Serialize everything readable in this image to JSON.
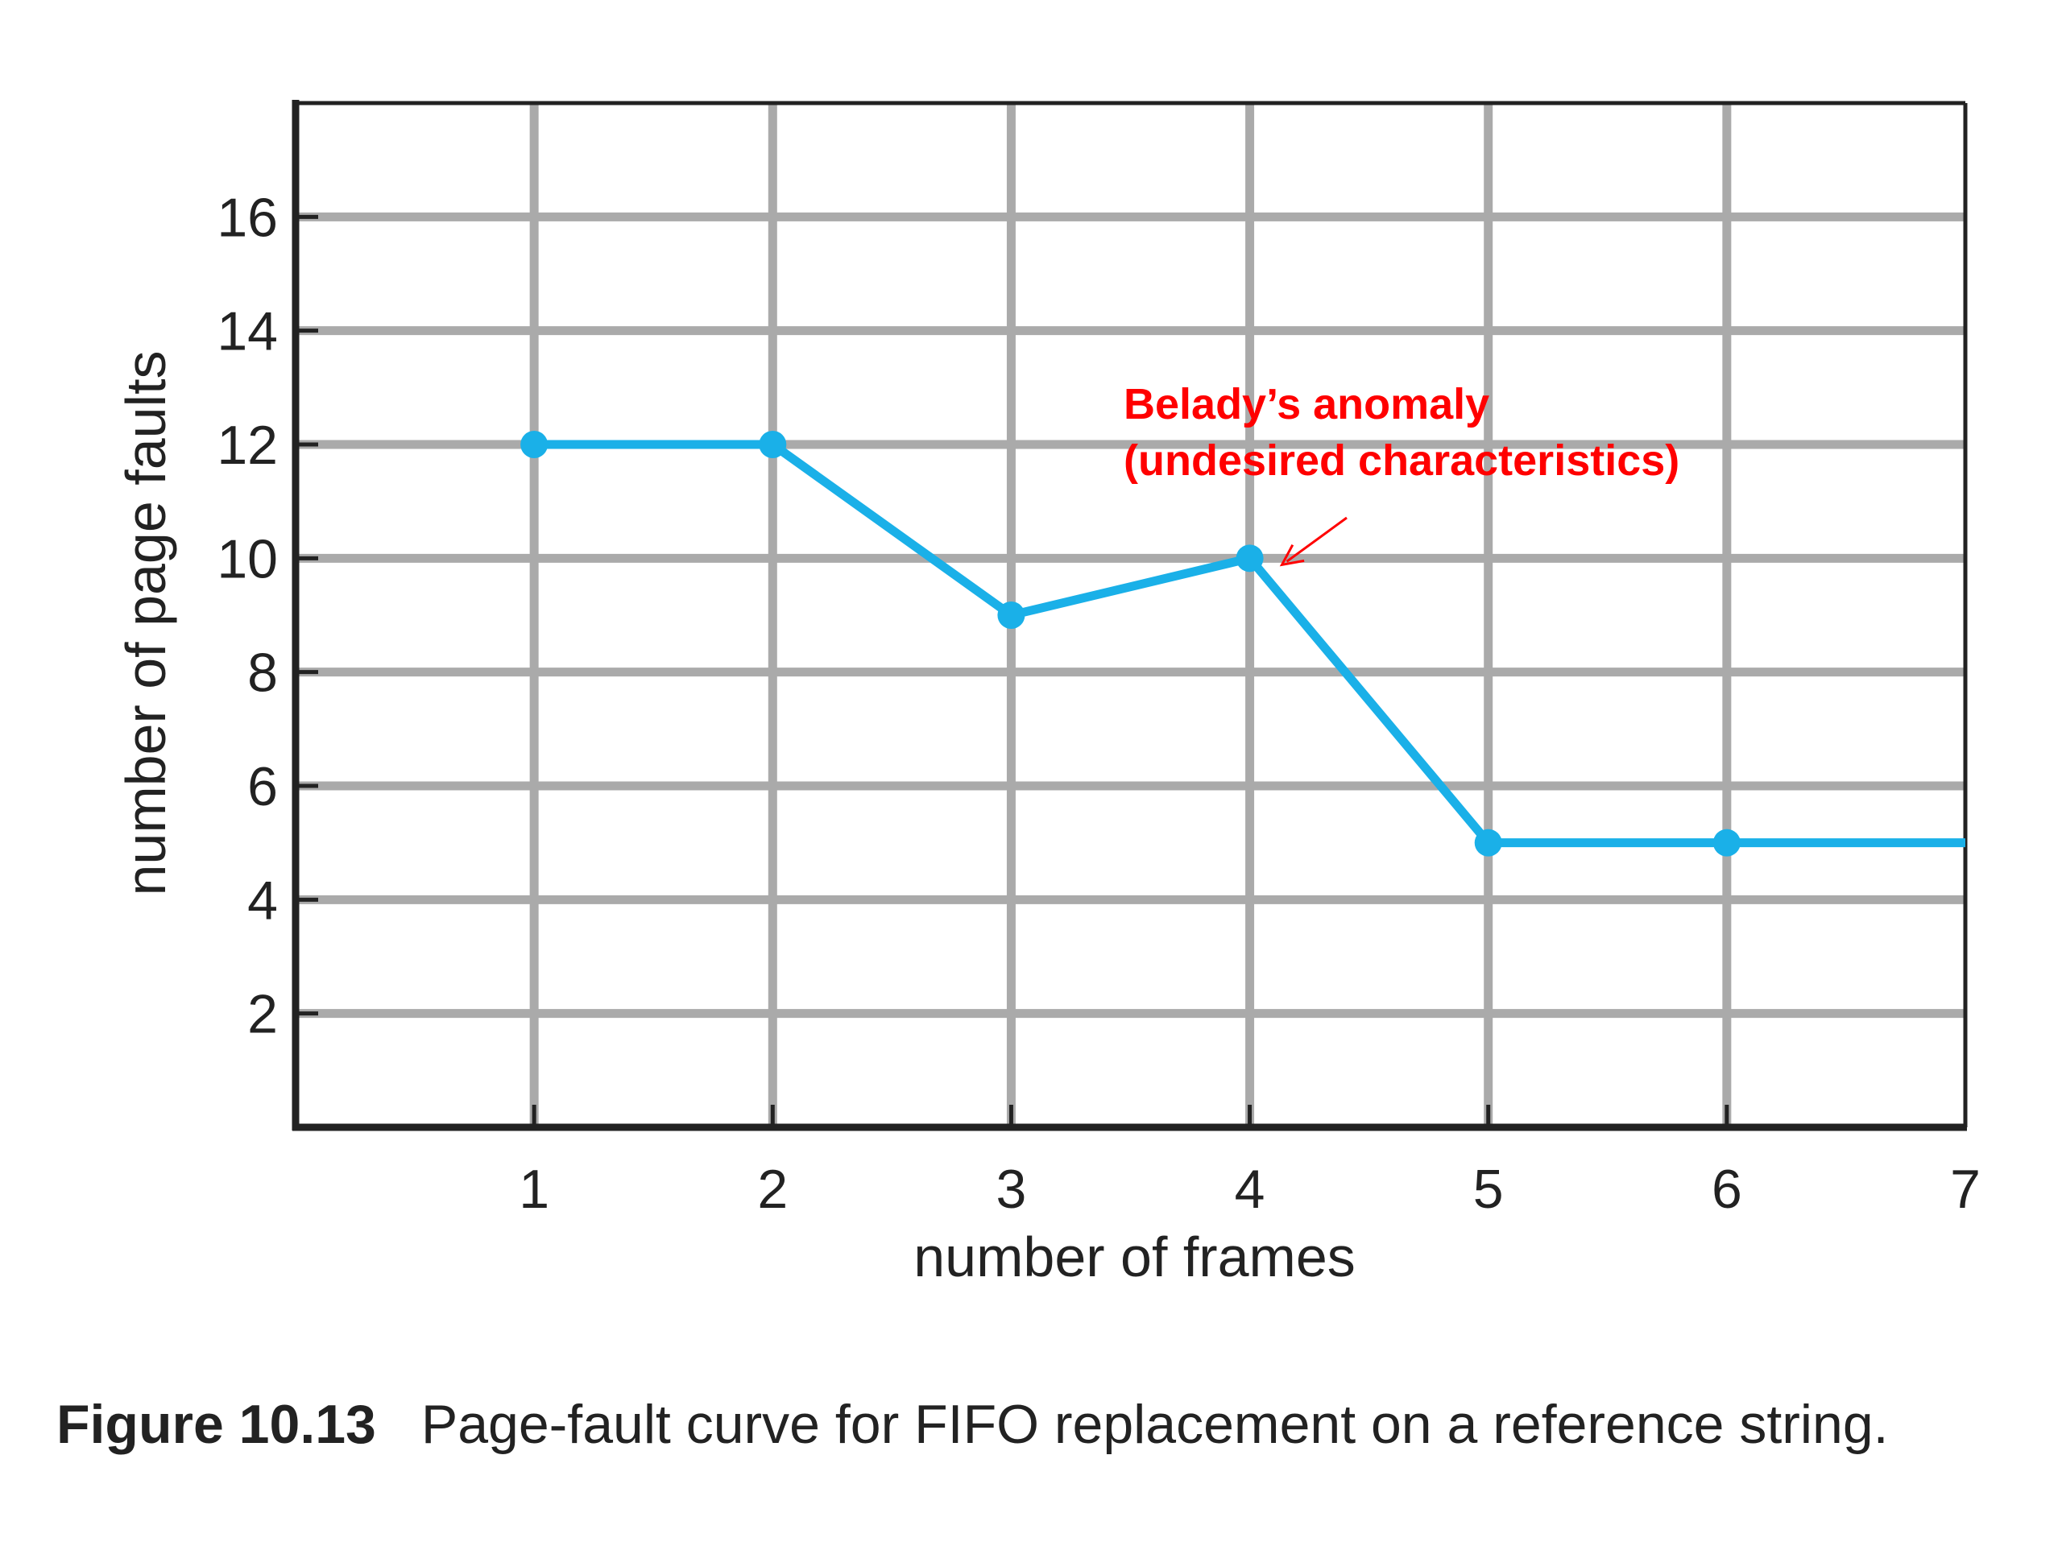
{
  "chart_data": {
    "type": "line",
    "title": "",
    "xlabel": "number of frames",
    "ylabel": "number of page faults",
    "xlim": [
      0,
      7
    ],
    "ylim": [
      0,
      18
    ],
    "x_ticks": [
      1,
      2,
      3,
      4,
      5,
      6,
      7
    ],
    "y_ticks": [
      2,
      4,
      6,
      8,
      10,
      12,
      14,
      16
    ],
    "grid": true,
    "series": [
      {
        "x": [
          1,
          2,
          3,
          4,
          5,
          6,
          7
        ],
        "y": [
          12,
          12,
          9,
          10,
          5,
          5,
          5
        ],
        "color": "#1ab0e8",
        "markers_at": [
          1,
          2,
          3,
          4,
          5,
          6
        ]
      }
    ],
    "annotation": {
      "line1": "Belady’s anomaly",
      "line2": "(undesired characteristics)",
      "color": "#ff0000",
      "points_to": {
        "x": 4,
        "y": 10
      }
    }
  },
  "caption": {
    "label": "Figure 10.13",
    "text": "Page-fault curve for FIFO replacement on a reference string."
  },
  "colors": {
    "grid": "#aaaaaa",
    "axis": "#222222"
  }
}
